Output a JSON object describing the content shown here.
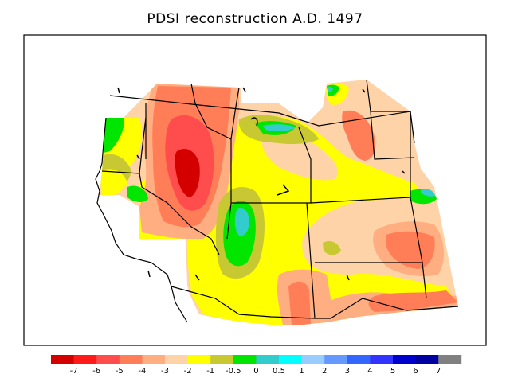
{
  "title": "PDSI reconstruction A.D. 1497",
  "colorbar": {
    "labels": [
      "-7",
      "-6",
      "-5",
      "-4",
      "-3",
      "-2",
      "-1",
      "-0.5",
      "0",
      "0.5",
      "1",
      "2",
      "3",
      "4",
      "5",
      "6",
      "7"
    ],
    "colors": [
      "#d40000",
      "#ff1a1a",
      "#ff4d4d",
      "#ff7d57",
      "#ffae82",
      "#ffd3a8",
      "#ffff00",
      "#c8c832",
      "#00e600",
      "#33cccc",
      "#00ffff",
      "#99ccff",
      "#6699ff",
      "#3366ff",
      "#3333ff",
      "#0000cc",
      "#0000a0",
      "#808080"
    ]
  },
  "map": {
    "region": "Western United States",
    "variable": "PDSI",
    "year": "1497",
    "colors": {
      "base": "#ffd3a8",
      "dry_core": "#ff4d4d",
      "dry": "#ff7d57",
      "moderate": "#ffae82",
      "near_normal": "#ffff00",
      "olive": "#c8c832",
      "wet": "#00e600",
      "teal": "#33cccc",
      "border": "#000000"
    }
  }
}
